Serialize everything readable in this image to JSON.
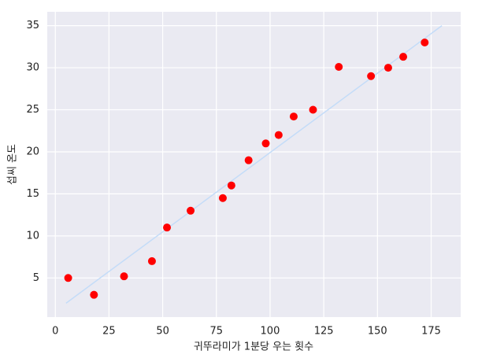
{
  "chart_data": {
    "type": "scatter",
    "xlabel": "귀뚜라미가 1분당 우는 횟수",
    "ylabel": "섭씨 온도",
    "x": [
      6,
      18,
      32,
      45,
      52,
      63,
      78,
      82,
      90,
      98,
      104,
      111,
      120,
      132,
      147,
      155,
      162,
      172
    ],
    "values": [
      5,
      3,
      5.2,
      7,
      11,
      13,
      14.5,
      16,
      19,
      21,
      22,
      24.2,
      25,
      30.1,
      29,
      30,
      31.3,
      33
    ],
    "color": "#ff0000",
    "fit_line": {
      "x": [
        5,
        180
      ],
      "values": [
        2,
        35
      ],
      "color": "#c4dcf8"
    },
    "xlim": [
      -3.75,
      188.75
    ],
    "ylim": [
      0.35,
      36.65
    ],
    "xticks": [
      0,
      25,
      50,
      75,
      100,
      125,
      150,
      175
    ],
    "yticks": [
      5,
      10,
      15,
      20,
      25,
      30,
      35
    ],
    "grid": true
  }
}
